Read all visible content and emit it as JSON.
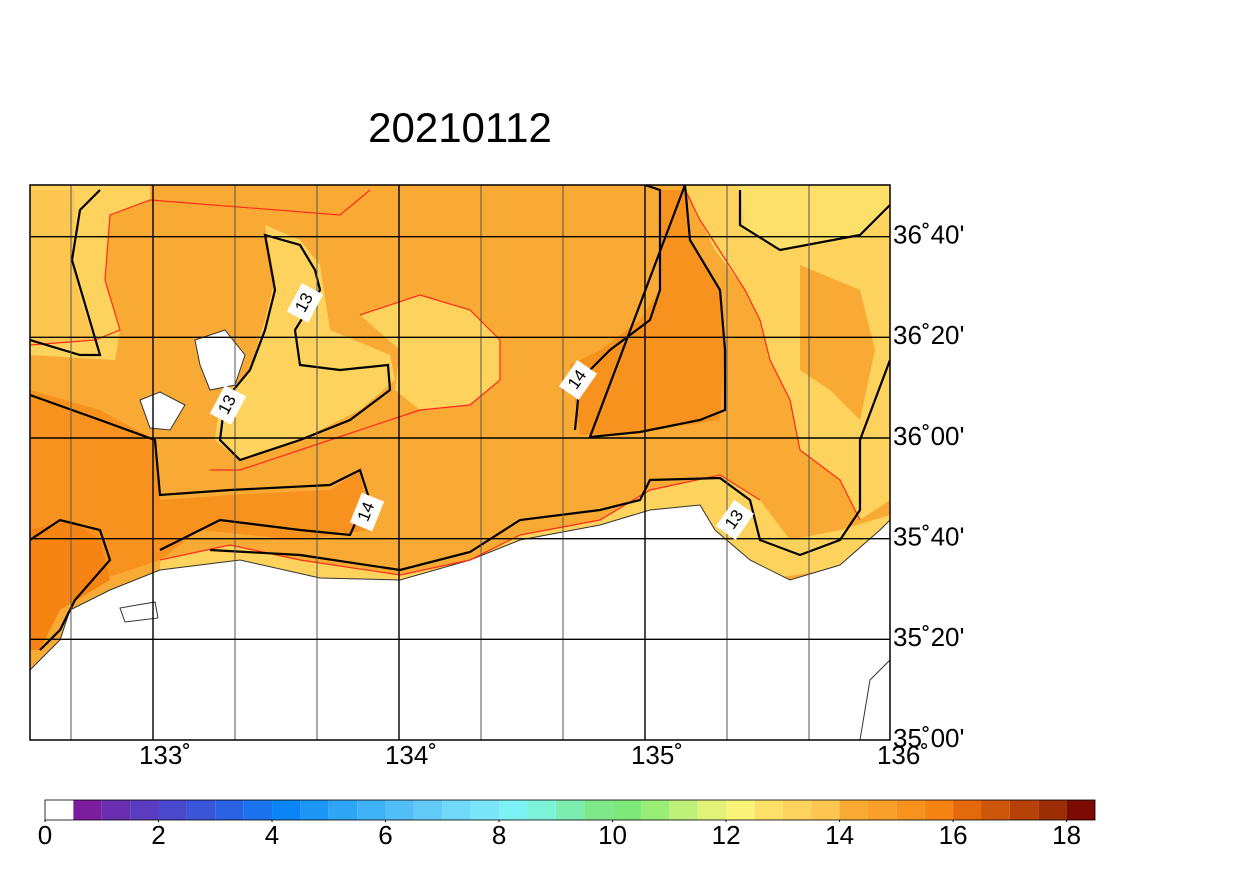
{
  "title": "20210112",
  "map": {
    "lon_labels": [
      {
        "value": 133,
        "label": "133˚"
      },
      {
        "value": 134,
        "label": "134˚"
      },
      {
        "value": 135,
        "label": "135˚"
      },
      {
        "value": 136,
        "label": "136˚"
      }
    ],
    "lat_labels": [
      {
        "value": 36.6667,
        "label": "36˚40'"
      },
      {
        "value": 36.3333,
        "label": "36˚20'"
      },
      {
        "value": 36,
        "label": "36˚00'"
      },
      {
        "value": 35.6667,
        "label": "35˚40'"
      },
      {
        "value": 35.3333,
        "label": "35˚20'"
      },
      {
        "value": 35,
        "label": "35˚00'"
      }
    ],
    "contour_labels": [
      "13",
      "13",
      "14",
      "14",
      "13"
    ]
  },
  "colorbar": {
    "clim": [
      0,
      18.5
    ],
    "ticks": [
      0,
      2,
      4,
      6,
      8,
      10,
      12,
      14,
      16,
      18
    ],
    "colors": [
      "#ffffff",
      "#7b1d9e",
      "#6a2fb0",
      "#5a3cbf",
      "#4a48cc",
      "#3a55d8",
      "#2a62e2",
      "#1a72ec",
      "#0b85f5",
      "#1e96f5",
      "#2fa5f5",
      "#40b2f6",
      "#52bef7",
      "#62cbf8",
      "#70d8f9",
      "#7be6fa",
      "#7cf2f5",
      "#7cf2d8",
      "#7cecb0",
      "#7ee88a",
      "#7ee87a",
      "#9aee78",
      "#bff077",
      "#e0f278",
      "#fbf47a",
      "#fde06a",
      "#fdd35d",
      "#fcc650",
      "#f9aa34",
      "#f89f2c",
      "#f7921f",
      "#f68412",
      "#e26a0c",
      "#cc560a",
      "#b64208",
      "#9c2e06",
      "#7a0a02"
    ]
  }
}
